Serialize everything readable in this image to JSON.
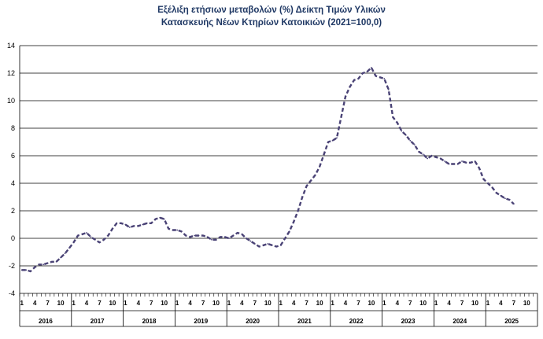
{
  "chart_data": {
    "type": "line",
    "title_line1": "Εξέλιξη ετήσιων μεταβολών (%) Δείκτη Τιμών Υλικών",
    "title_line2": "Κατασκευής Νέων Κτηρίων Κατοικιών (2021=100,0)",
    "ylim": [
      -4,
      14
    ],
    "yticks": [
      -4,
      -2,
      0,
      2,
      4,
      6,
      8,
      10,
      12,
      14
    ],
    "grid": true,
    "legend": "none",
    "line_color": "#4a4376",
    "line_style": "dashed",
    "start": "2016-01",
    "month_tick_labels": [
      "1",
      "4",
      "7",
      "10"
    ],
    "years": [
      "2016",
      "2017",
      "2018",
      "2019",
      "2020",
      "2021",
      "2022",
      "2023",
      "2024",
      "2025"
    ],
    "values": [
      -2.3,
      -2.3,
      -2.4,
      -2.1,
      -1.9,
      -1.9,
      -1.8,
      -1.7,
      -1.7,
      -1.4,
      -1.1,
      -0.7,
      -0.3,
      0.2,
      0.3,
      0.4,
      0.1,
      -0.1,
      -0.3,
      -0.1,
      0.2,
      0.7,
      1.1,
      1.1,
      1.0,
      0.8,
      0.9,
      0.9,
      1.0,
      1.1,
      1.1,
      1.4,
      1.5,
      1.4,
      0.7,
      0.6,
      0.6,
      0.5,
      0.2,
      0.1,
      0.2,
      0.2,
      0.2,
      0.1,
      -0.1,
      -0.1,
      0.1,
      0.1,
      0.0,
      0.2,
      0.4,
      0.3,
      0.0,
      -0.2,
      -0.4,
      -0.6,
      -0.5,
      -0.4,
      -0.5,
      -0.6,
      -0.5,
      0.0,
      0.5,
      1.2,
      2.0,
      3.0,
      3.8,
      4.2,
      4.6,
      5.2,
      6.1,
      7.0,
      7.1,
      7.3,
      8.8,
      10.3,
      11.0,
      11.5,
      11.6,
      12.0,
      12.1,
      12.4,
      11.8,
      11.7,
      11.6,
      10.8,
      8.8,
      8.4,
      7.8,
      7.5,
      7.1,
      6.8,
      6.3,
      6.1,
      5.8,
      6.0,
      5.9,
      5.8,
      5.6,
      5.4,
      5.4,
      5.4,
      5.6,
      5.5,
      5.5,
      5.6,
      5.1,
      4.3,
      4.0,
      3.7,
      3.3,
      3.1,
      2.9,
      2.8,
      2.5
    ]
  }
}
